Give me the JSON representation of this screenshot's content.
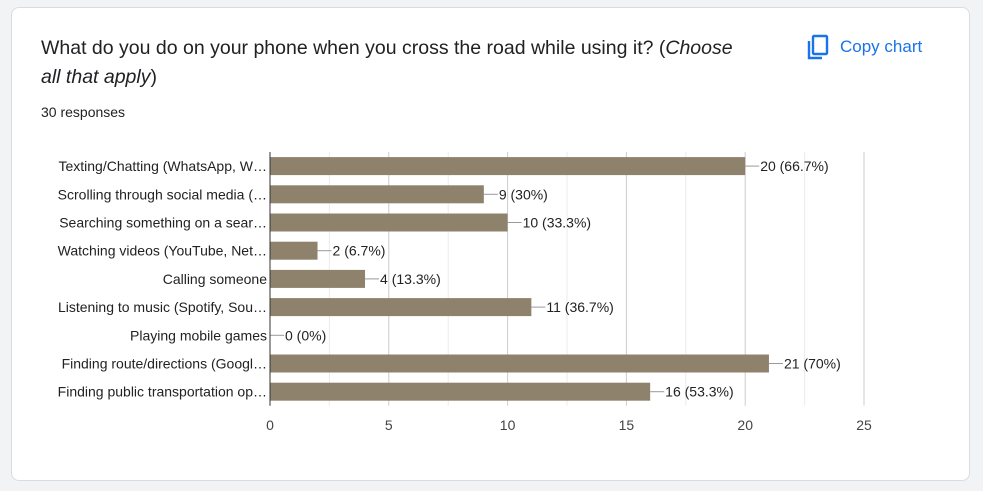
{
  "header": {
    "title_main": "What do you do on your phone when you cross the road while using it? (",
    "title_italic_1": "Choose",
    "title_italic_2": "all that apply",
    "title_end": ")",
    "responses": "30 responses",
    "copy_label": "Copy chart"
  },
  "colors": {
    "bar": "#8f826d",
    "accent": "#1a73e8"
  },
  "icons": {
    "copy": "copy-icon"
  },
  "chart_data": {
    "type": "bar",
    "orientation": "horizontal",
    "categories": [
      "Texting/Chatting (WhatsApp, W…",
      "Scrolling through social media (…",
      "Searching something on a sear…",
      "Watching videos (YouTube, Net…",
      "Calling someone",
      "Listening to music (Spotify, Sou…",
      "Playing mobile games",
      "Finding route/directions (Googl…",
      "Finding public transportation op…"
    ],
    "values": [
      20,
      9,
      10,
      2,
      4,
      11,
      0,
      21,
      16
    ],
    "data_labels": [
      "20 (66.7%)",
      "9 (30%)",
      "10 (33.3%)",
      "2 (6.7%)",
      "4 (13.3%)",
      "11 (36.7%)",
      "0 (0%)",
      "21 (70%)",
      "16 (53.3%)"
    ],
    "xlim": [
      0,
      25
    ],
    "xticks": [
      0,
      5,
      10,
      15,
      20,
      25
    ],
    "grid": true
  }
}
